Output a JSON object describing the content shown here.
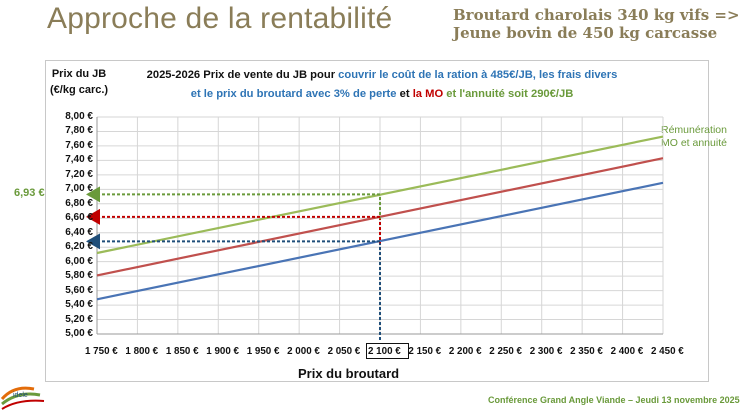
{
  "slide": {
    "title": "Approche de la rentabilité",
    "subtitle_line1": "Broutard charolais 340 kg vifs =>",
    "subtitle_line2": "Jeune bovin de 450 kg carcasse",
    "footer": "Conférence Grand Angle Viande – Jeudi 13 novembre 2025",
    "logo_text": "idele",
    "colors": {
      "blue": "#4a74b5",
      "red": "#c0504d",
      "green": "#9bbb59",
      "title": "#8a7d58"
    }
  },
  "chart_data": {
    "type": "line",
    "ylabel_line1": "Prix du JB",
    "ylabel_line2": "(€/kg carc.)",
    "title_parts": {
      "p1": "2025-2026  Prix de vente du JB pour ",
      "p2": "couvrir le coût de la ration à 485€/JB, les frais divers",
      "p3": "et le prix du broutard avec 3% de perte",
      "p4": " et ",
      "p5": "la MO",
      "p6": " et l'annuité",
      "p7": "  soit 290€/JB"
    },
    "xlabel": "Prix du broutard",
    "x": [
      1750,
      1800,
      1850,
      1900,
      1950,
      2000,
      2050,
      2100,
      2150,
      2200,
      2250,
      2300,
      2350,
      2400,
      2450
    ],
    "x_tick_labels": [
      "1 750 €",
      "1 800 €",
      "1 850 €",
      "1 900 €",
      "1 950 €",
      "2 000 €",
      "2 050 €",
      "2 100 €",
      "2 150 €",
      "2 200 €",
      "2 250 €",
      "2 300 €",
      "2 350 €",
      "2 400 €",
      "2 450 €"
    ],
    "xlim": [
      1750,
      2450
    ],
    "ylim": [
      5.0,
      8.0
    ],
    "y_ticks": [
      5.0,
      5.2,
      5.4,
      5.6,
      5.8,
      6.0,
      6.2,
      6.4,
      6.6,
      6.8,
      7.0,
      7.2,
      7.4,
      7.6,
      7.8,
      8.0
    ],
    "y_tick_labels": [
      "5,00 €",
      "5,20 €",
      "5,40 €",
      "5,60 €",
      "5,80 €",
      "6,00 €",
      "6,20 €",
      "6,40 €",
      "6,60 €",
      "6,80 €",
      "7,00 €",
      "7,20 €",
      "7,40 €",
      "7,60 €",
      "7,80 €",
      "8,00 €"
    ],
    "grid": true,
    "highlight_x_label": "2 100 €",
    "series": [
      {
        "key": "blue",
        "color": "#4a74b5",
        "x": [
          1750,
          2450
        ],
        "values": [
          5.48,
          7.09
        ]
      },
      {
        "key": "red",
        "color": "#c0504d",
        "x": [
          1750,
          2450
        ],
        "values": [
          5.81,
          7.43
        ]
      },
      {
        "key": "green",
        "name_line1": "Rémunération",
        "name_line2": "MO et annuité",
        "color": "#9bbb59",
        "x": [
          1750,
          2450
        ],
        "values": [
          6.12,
          7.73
        ]
      }
    ],
    "annotations": [
      {
        "series": "green",
        "x": 2100,
        "y": 6.93,
        "label": "6,93 €"
      },
      {
        "series": "red",
        "x": 2100,
        "y": 6.62
      },
      {
        "series": "blue",
        "x": 2100,
        "y": 6.28
      }
    ]
  }
}
